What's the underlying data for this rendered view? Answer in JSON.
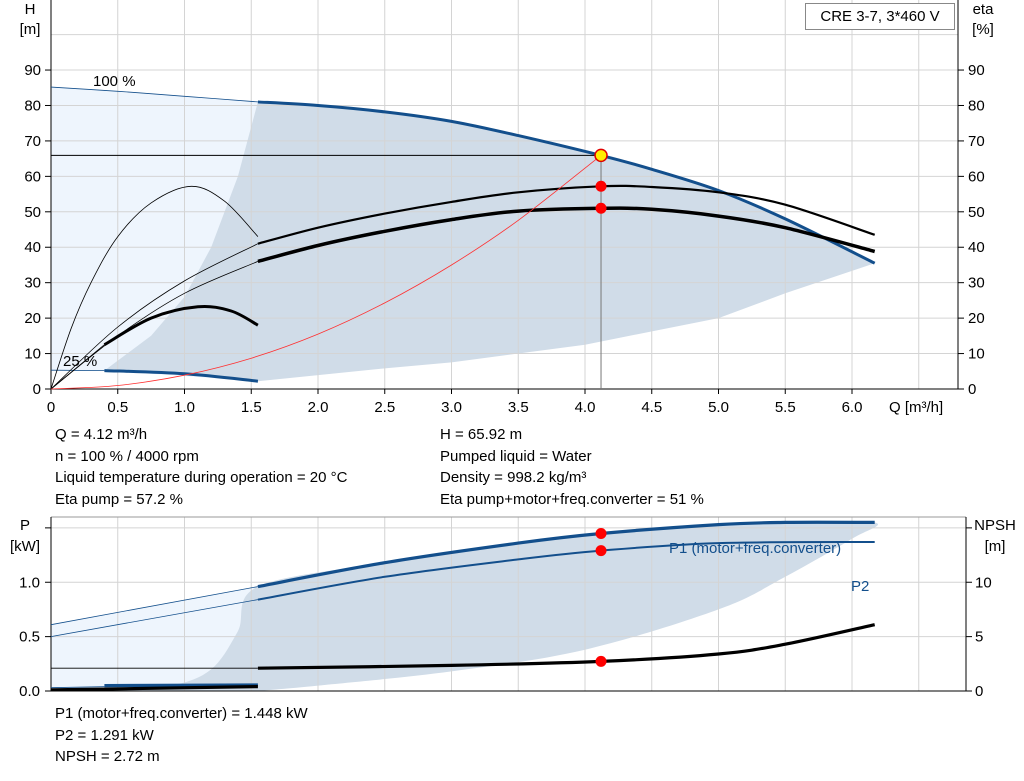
{
  "title": "CRE 3-7, 3*460 V",
  "chart_data": [
    {
      "type": "line",
      "xlabel": "Q [m³/h]",
      "ylabel_left": [
        "H",
        "[m]"
      ],
      "ylabel_right": [
        "eta",
        "[%]"
      ],
      "xlim": [
        0,
        6.5
      ],
      "ylim": [
        0,
        90
      ],
      "xticks": [
        "0",
        "0.5",
        "1.0",
        "1.5",
        "2.0",
        "2.5",
        "3.0",
        "3.5",
        "4.0",
        "4.5",
        "5.0",
        "5.5",
        "6.0"
      ],
      "yticks": [
        "0",
        "10",
        "20",
        "30",
        "40",
        "50",
        "60",
        "70",
        "80",
        "90"
      ],
      "grid": true,
      "annotations": [
        "100 %",
        "25 %"
      ],
      "series": [
        {
          "key": "h100",
          "color": "#134f8c",
          "thin": [
            [
              0,
              85.2
            ],
            [
              0.5,
              84
            ],
            [
              1.0,
              82.6
            ],
            [
              1.55,
              81
            ]
          ],
          "thick": [
            [
              1.55,
              81
            ],
            [
              2.0,
              80
            ],
            [
              2.5,
              78.2
            ],
            [
              3.0,
              75.5
            ],
            [
              3.5,
              71.5
            ],
            [
              4.12,
              65.92
            ],
            [
              4.5,
              62
            ],
            [
              5.0,
              56
            ],
            [
              5.5,
              48
            ],
            [
              6.17,
              35.5
            ]
          ]
        },
        {
          "key": "h25",
          "color": "#134f8c",
          "thin": [
            [
              0,
              5.3
            ],
            [
              0.4,
              5.2
            ]
          ],
          "thick": [
            [
              0.4,
              5.2
            ],
            [
              1.0,
              4.3
            ],
            [
              1.55,
              2.2
            ]
          ]
        },
        {
          "key": "eta_pump",
          "color": "#000000",
          "thin": [
            [
              0,
              0
            ],
            [
              0.5,
              17.5
            ],
            [
              1.0,
              30.5
            ],
            [
              1.55,
              41
            ]
          ],
          "thick": [
            [
              1.55,
              41
            ],
            [
              2.0,
              45.5
            ],
            [
              2.5,
              49.5
            ],
            [
              3.0,
              52.8
            ],
            [
              3.5,
              55.5
            ],
            [
              4.12,
              57.2
            ],
            [
              4.5,
              57
            ],
            [
              5.0,
              55.5
            ],
            [
              5.5,
              52
            ],
            [
              6.17,
              43.5
            ]
          ]
        },
        {
          "key": "eta_total",
          "color": "#000000",
          "thin": [
            [
              0,
              0
            ],
            [
              0.5,
              15
            ],
            [
              1.0,
              27
            ],
            [
              1.55,
              36
            ]
          ],
          "thick": [
            [
              1.55,
              36
            ],
            [
              2.0,
              40.5
            ],
            [
              2.5,
              44.5
            ],
            [
              3.0,
              47.8
            ],
            [
              3.5,
              50.2
            ],
            [
              4.12,
              51
            ],
            [
              4.5,
              50.7
            ],
            [
              5.0,
              48.8
            ],
            [
              5.5,
              45.5
            ],
            [
              6.17,
              38.8
            ]
          ]
        },
        {
          "key": "eta_pump_25",
          "color": "#000000",
          "thin": [
            [
              0,
              0
            ],
            [
              0.15,
              17
            ],
            [
              0.3,
              30
            ],
            [
              0.5,
              43
            ],
            [
              0.75,
              52.5
            ],
            [
              1.05,
              57.2
            ],
            [
              1.3,
              53
            ],
            [
              1.55,
              43
            ]
          ],
          "thick": []
        },
        {
          "key": "eta_total_25",
          "color": "#000000",
          "thin": [
            [
              0,
              0
            ],
            [
              0.4,
              12.5
            ]
          ],
          "thick": [
            [
              0.4,
              12.5
            ],
            [
              0.75,
              20
            ],
            [
              1.1,
              23.2
            ],
            [
              1.35,
              22
            ],
            [
              1.55,
              18
            ]
          ]
        },
        {
          "key": "system",
          "color": "#ff3030",
          "thin": [
            [
              0,
              0
            ],
            [
              0.5,
              1
            ],
            [
              1,
              3.9
            ],
            [
              1.5,
              8.7
            ],
            [
              2,
              15.5
            ],
            [
              2.5,
              24.3
            ],
            [
              3,
              35
            ],
            [
              3.5,
              47.6
            ],
            [
              4.12,
              65.92
            ]
          ],
          "thick": []
        }
      ],
      "duty_point": {
        "q": 4.12,
        "h": 65.92,
        "eta_pump": 57.2,
        "eta_total": 51
      }
    },
    {
      "type": "line",
      "ylabel_left": [
        "P",
        "[kW]"
      ],
      "ylabel_right": [
        "NPSH",
        "[m]"
      ],
      "xlim": [
        0,
        6.5
      ],
      "ylim": [
        0,
        1.6
      ],
      "ylim_right": [
        0,
        16
      ],
      "yticks": [
        "0.0",
        "0.5",
        "1.0"
      ],
      "yticks_right": [
        "0",
        "5",
        "10"
      ],
      "grid": true,
      "legend": [
        "P1 (motor+freq.converter)",
        "P2"
      ],
      "series": [
        {
          "key": "p1",
          "color": "#134f8c",
          "thin": [
            [
              0,
              0.61
            ],
            [
              1.55,
              0.96
            ]
          ],
          "thick": [
            [
              1.55,
              0.96
            ],
            [
              2.5,
              1.18
            ],
            [
              3.5,
              1.36
            ],
            [
              4.12,
              1.448
            ],
            [
              5.0,
              1.53
            ],
            [
              5.5,
              1.55
            ],
            [
              6.17,
              1.55
            ]
          ]
        },
        {
          "key": "p2",
          "color": "#134f8c",
          "thin": [
            [
              0,
              0.5
            ],
            [
              1.55,
              0.84
            ]
          ],
          "thick": [
            [
              1.55,
              0.84
            ],
            [
              2.5,
              1.05
            ],
            [
              3.5,
              1.21
            ],
            [
              4.12,
              1.291
            ],
            [
              5.0,
              1.36
            ],
            [
              6.17,
              1.37
            ]
          ]
        },
        {
          "key": "npsh",
          "color": "#000000",
          "right": true,
          "thin": [
            [
              0,
              2.1
            ],
            [
              1.55,
              2.1
            ]
          ],
          "thick": [
            [
              1.55,
              2.1
            ],
            [
              3.0,
              2.35
            ],
            [
              4.12,
              2.72
            ],
            [
              5.0,
              3.4
            ],
            [
              5.5,
              4.3
            ],
            [
              6.17,
              6.1
            ]
          ]
        },
        {
          "key": "p1_25",
          "color": "#134f8c",
          "thin": [
            [
              0,
              0.03
            ],
            [
              0.4,
              0.04
            ]
          ],
          "thick": [
            [
              0.4,
              0.05
            ],
            [
              1.55,
              0.055
            ]
          ]
        },
        {
          "key": "p2_25",
          "color": "#000000",
          "thin": [],
          "thick": [
            [
              0,
              0.01
            ],
            [
              1.55,
              0.04
            ]
          ]
        }
      ],
      "duty_point": {
        "q": 4.12,
        "p1": 1.448,
        "p2": 1.291,
        "npsh": 2.72
      }
    }
  ],
  "readout_top_left": [
    "Q = 4.12 m³/h",
    "n = 100 % / 4000 rpm",
    "Liquid temperature during operation = 20 °C",
    "Eta pump = 57.2 %"
  ],
  "readout_top_right": [
    "H = 65.92 m",
    "Pumped liquid = Water",
    "Density = 998.2 kg/m³",
    "Eta pump+motor+freq.converter = 51 %"
  ],
  "readout_bottom": [
    "P1 (motor+freq.converter) = 1.448 kW",
    "P2 = 1.291 kW",
    "NPSH = 2.72 m"
  ]
}
